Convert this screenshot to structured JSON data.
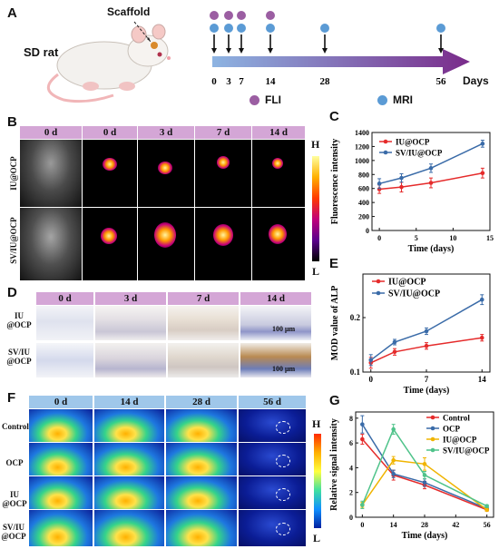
{
  "panels": {
    "A": {
      "label": "A",
      "animal": "SD rat",
      "scaffold": "Scaffold",
      "timepoints": [
        "0",
        "3",
        "7",
        "14",
        "28",
        "56"
      ],
      "axis_unit": "Days",
      "legend": [
        {
          "name": "FLI",
          "color": "#9b5ea2"
        },
        {
          "name": "MRI",
          "color": "#5b9bd5"
        }
      ]
    },
    "B": {
      "label": "B",
      "headers": [
        "0 d",
        "0 d",
        "3 d",
        "7 d",
        "14 d"
      ],
      "rows": [
        "IU@OCP",
        "SV/IU@OCP"
      ],
      "scale_high": "H",
      "scale_low": "L"
    },
    "D": {
      "label": "D",
      "headers": [
        "0 d",
        "3 d",
        "7 d",
        "14 d"
      ],
      "rows": [
        "IU\n@OCP",
        "SV/IU\n@OCP"
      ],
      "scalebar": "100 μm"
    },
    "F": {
      "label": "F",
      "headers": [
        "0 d",
        "14 d",
        "28 d",
        "56 d"
      ],
      "rows": [
        "Control",
        "OCP",
        "IU\n@OCP",
        "SV/IU\n@OCP"
      ],
      "scale_high": "H",
      "scale_low": "L"
    }
  },
  "chart_data": [
    {
      "panel": "C",
      "type": "line",
      "xlabel": "Time (days)",
      "ylabel": "Fluorescence intensity",
      "xlim": [
        -1,
        15
      ],
      "ylim": [
        0,
        1400
      ],
      "xticks": [
        0,
        5,
        10,
        15
      ],
      "yticks": [
        0,
        200,
        400,
        600,
        800,
        1000,
        1200,
        1400
      ],
      "x": [
        0,
        3,
        7,
        14
      ],
      "series": [
        {
          "name": "IU@OCP",
          "color": "#e52b2b",
          "values": [
            590,
            620,
            680,
            820
          ],
          "err": [
            60,
            70,
            70,
            70
          ]
        },
        {
          "name": "SV/IU@OCP",
          "color": "#3a6ba8",
          "values": [
            670,
            750,
            890,
            1240
          ],
          "err": [
            70,
            60,
            60,
            50
          ]
        }
      ],
      "legend": "top-left"
    },
    {
      "panel": "E",
      "type": "line",
      "xlabel": "Time (days)",
      "ylabel": "MOD value of ALP",
      "xlim": [
        -1,
        15
      ],
      "ylim": [
        0.1,
        0.28
      ],
      "xticks": [
        0,
        7,
        14
      ],
      "yticks": [
        0.1,
        0.2
      ],
      "x": [
        0,
        3,
        7,
        14
      ],
      "series": [
        {
          "name": "IU@OCP",
          "color": "#e52b2b",
          "values": [
            0.117,
            0.137,
            0.148,
            0.163
          ],
          "err": [
            0.01,
            0.006,
            0.006,
            0.006
          ]
        },
        {
          "name": "SV/IU@OCP",
          "color": "#3a6ba8",
          "values": [
            0.122,
            0.155,
            0.175,
            0.233
          ],
          "err": [
            0.01,
            0.005,
            0.006,
            0.009
          ]
        }
      ],
      "legend": "top-left"
    },
    {
      "panel": "G",
      "type": "line",
      "xlabel": "Time (days)",
      "ylabel": "Relative signal intensity",
      "xlim": [
        -3,
        59
      ],
      "ylim": [
        0,
        8.5
      ],
      "xticks": [
        0,
        14,
        28,
        42,
        56
      ],
      "yticks": [
        0,
        2,
        4,
        6,
        8
      ],
      "x": [
        0,
        14,
        28,
        56
      ],
      "series": [
        {
          "name": "Control",
          "color": "#e52b2b",
          "values": [
            6.3,
            3.4,
            2.6,
            0.6
          ],
          "err": [
            0.4,
            0.4,
            0.3,
            0.1
          ]
        },
        {
          "name": "OCP",
          "color": "#3a6ba8",
          "values": [
            7.5,
            3.5,
            2.8,
            0.7
          ],
          "err": [
            0.7,
            0.3,
            0.3,
            0.1
          ]
        },
        {
          "name": "IU@OCP",
          "color": "#f0b400",
          "values": [
            1.0,
            4.6,
            4.3,
            0.6
          ],
          "err": [
            0.2,
            0.3,
            0.5,
            0.1
          ]
        },
        {
          "name": "SV/IU@OCP",
          "color": "#4fc38a",
          "values": [
            1.0,
            7.1,
            3.4,
            0.9
          ],
          "err": [
            0.3,
            0.4,
            0.3,
            0.1
          ]
        }
      ],
      "legend": "top-right"
    }
  ]
}
